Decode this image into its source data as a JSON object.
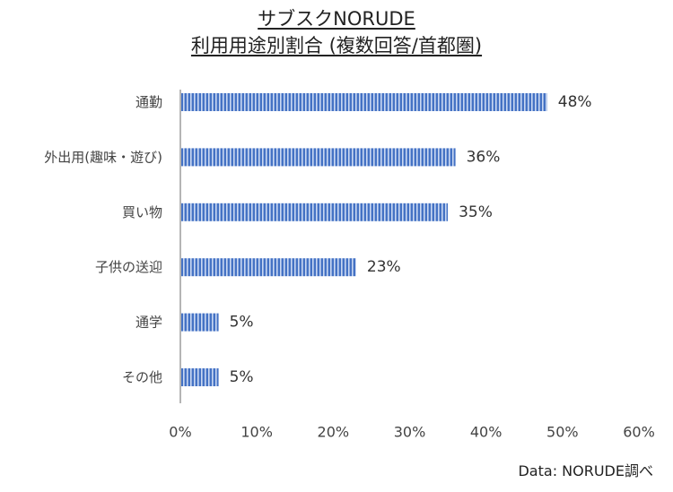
{
  "chart_data": {
    "type": "bar",
    "orientation": "horizontal",
    "title": [
      "サブスクNORUDE",
      "利用用途別割合 (複数回答/首都圏)"
    ],
    "categories": [
      "通勤",
      "外出用(趣味・遊び)",
      "買い物",
      "子供の送迎",
      "通学",
      "その他"
    ],
    "values": [
      48,
      36,
      35,
      23,
      5,
      5
    ],
    "value_labels": [
      "48%",
      "36%",
      "35%",
      "23%",
      "5%",
      "5%"
    ],
    "xlim": [
      0,
      60
    ],
    "x_ticks": [
      "0%",
      "10%",
      "20%",
      "30%",
      "40%",
      "50%",
      "60%"
    ],
    "grid": false,
    "bar_color": "#4472C4",
    "source": "Data: NORUDE調べ"
  }
}
